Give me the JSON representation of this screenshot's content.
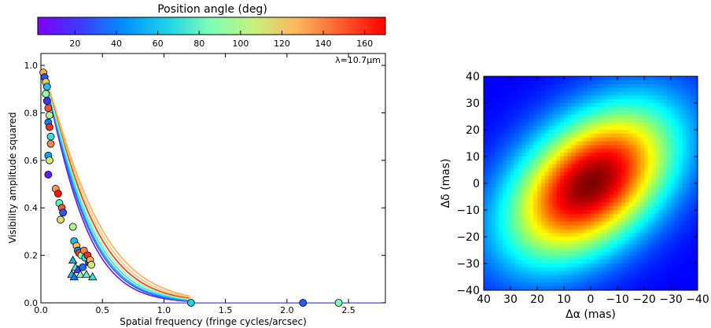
{
  "chart_data": [
    {
      "type": "scatter",
      "colorbar": {
        "label": "Position angle (deg)",
        "range": [
          2,
          170
        ],
        "ticks": [
          20,
          40,
          60,
          80,
          100,
          120,
          140,
          160
        ],
        "colormap": "jet"
      },
      "annotation": "λ=10.7μm",
      "xlabel": "Spatial frequency (fringe cycles/arcsec)",
      "ylabel": "Visibility amplitude squared",
      "xlim": [
        0,
        2.8
      ],
      "ylim": [
        0,
        1.05
      ],
      "xticks": [
        "0.0",
        "0.5",
        "1.0",
        "1.5",
        "2.0",
        "2.5"
      ],
      "yticks": [
        "0.0",
        "0.2",
        "0.4",
        "0.6",
        "0.8",
        "1.0"
      ],
      "grid": false,
      "points": [
        {
          "x": 0.02,
          "y": 0.97,
          "pa": 130,
          "marker": "circle"
        },
        {
          "x": 0.03,
          "y": 0.95,
          "pa": 30,
          "marker": "circle"
        },
        {
          "x": 0.04,
          "y": 0.93,
          "pa": 120,
          "marker": "circle"
        },
        {
          "x": 0.05,
          "y": 0.91,
          "pa": 60,
          "marker": "circle"
        },
        {
          "x": 0.04,
          "y": 0.88,
          "pa": 90,
          "marker": "circle"
        },
        {
          "x": 0.05,
          "y": 0.85,
          "pa": 20,
          "marker": "circle"
        },
        {
          "x": 0.06,
          "y": 0.82,
          "pa": 150,
          "marker": "circle"
        },
        {
          "x": 0.07,
          "y": 0.79,
          "pa": 100,
          "marker": "circle"
        },
        {
          "x": 0.06,
          "y": 0.76,
          "pa": 40,
          "marker": "circle"
        },
        {
          "x": 0.07,
          "y": 0.74,
          "pa": 160,
          "marker": "circle"
        },
        {
          "x": 0.08,
          "y": 0.7,
          "pa": 70,
          "marker": "circle"
        },
        {
          "x": 0.08,
          "y": 0.67,
          "pa": 140,
          "marker": "circle"
        },
        {
          "x": 0.06,
          "y": 0.62,
          "pa": 50,
          "marker": "circle"
        },
        {
          "x": 0.07,
          "y": 0.6,
          "pa": 110,
          "marker": "circle"
        },
        {
          "x": 0.06,
          "y": 0.54,
          "pa": 10,
          "marker": "circle"
        },
        {
          "x": 0.12,
          "y": 0.48,
          "pa": 135,
          "marker": "circle"
        },
        {
          "x": 0.14,
          "y": 0.46,
          "pa": 165,
          "marker": "circle"
        },
        {
          "x": 0.15,
          "y": 0.42,
          "pa": 80,
          "marker": "circle"
        },
        {
          "x": 0.17,
          "y": 0.4,
          "pa": 150,
          "marker": "circle"
        },
        {
          "x": 0.18,
          "y": 0.38,
          "pa": 30,
          "marker": "circle"
        },
        {
          "x": 0.16,
          "y": 0.35,
          "pa": 115,
          "marker": "circle"
        },
        {
          "x": 0.26,
          "y": 0.32,
          "pa": 100,
          "marker": "circle"
        },
        {
          "x": 0.27,
          "y": 0.26,
          "pa": 60,
          "marker": "circle"
        },
        {
          "x": 0.29,
          "y": 0.24,
          "pa": 125,
          "marker": "circle"
        },
        {
          "x": 0.3,
          "y": 0.22,
          "pa": 45,
          "marker": "circle"
        },
        {
          "x": 0.31,
          "y": 0.21,
          "pa": 155,
          "marker": "circle"
        },
        {
          "x": 0.33,
          "y": 0.2,
          "pa": 90,
          "marker": "circle"
        },
        {
          "x": 0.35,
          "y": 0.22,
          "pa": 140,
          "marker": "circle"
        },
        {
          "x": 0.36,
          "y": 0.19,
          "pa": 70,
          "marker": "circle"
        },
        {
          "x": 0.38,
          "y": 0.2,
          "pa": 160,
          "marker": "circle"
        },
        {
          "x": 0.39,
          "y": 0.17,
          "pa": 20,
          "marker": "circle"
        },
        {
          "x": 0.4,
          "y": 0.18,
          "pa": 130,
          "marker": "circle"
        },
        {
          "x": 0.41,
          "y": 0.16,
          "pa": 110,
          "marker": "circle"
        },
        {
          "x": 0.34,
          "y": 0.15,
          "pa": 35,
          "marker": "circle"
        },
        {
          "x": 0.26,
          "y": 0.18,
          "pa": 55,
          "marker": "triangle"
        },
        {
          "x": 0.28,
          "y": 0.15,
          "pa": 75,
          "marker": "triangle"
        },
        {
          "x": 0.3,
          "y": 0.14,
          "pa": 25,
          "marker": "triangle"
        },
        {
          "x": 0.32,
          "y": 0.12,
          "pa": 90,
          "marker": "triangle"
        },
        {
          "x": 0.25,
          "y": 0.12,
          "pa": 60,
          "marker": "triangle"
        },
        {
          "x": 0.27,
          "y": 0.11,
          "pa": 40,
          "marker": "triangle"
        },
        {
          "x": 0.37,
          "y": 0.12,
          "pa": 80,
          "marker": "triangle"
        },
        {
          "x": 0.42,
          "y": 0.11,
          "pa": 70,
          "marker": "triangle"
        },
        {
          "x": 1.22,
          "y": 0.0,
          "pa": 65,
          "marker": "circle"
        },
        {
          "x": 2.13,
          "y": 0.0,
          "pa": 30,
          "marker": "circle"
        },
        {
          "x": 2.42,
          "y": 0.0,
          "pa": 85,
          "marker": "circle"
        }
      ],
      "model_curves": [
        {
          "pa": 130,
          "width": 0.44
        },
        {
          "pa": 120,
          "width": 0.42
        },
        {
          "pa": 160,
          "width": 0.4
        },
        {
          "pa": 10,
          "width": 0.33
        },
        {
          "pa": 30,
          "width": 0.345
        },
        {
          "pa": 50,
          "width": 0.355
        },
        {
          "pa": 70,
          "width": 0.37
        },
        {
          "pa": 95,
          "width": 0.385
        }
      ]
    },
    {
      "type": "heatmap",
      "colormap": "jet",
      "xlabel": "Δα (mas)",
      "ylabel": "Δδ (mas)",
      "xlim": [
        40,
        -40
      ],
      "ylim": [
        -40,
        40
      ],
      "xticks": [
        "40",
        "30",
        "20",
        "10",
        "0",
        "−10",
        "−20",
        "−30",
        "−40"
      ],
      "yticks": [
        "40",
        "30",
        "20",
        "10",
        "0",
        "−10",
        "−20",
        "−30",
        "−40"
      ],
      "model": {
        "kind": "elliptical-gaussian",
        "major_fwhm": 58,
        "minor_fwhm": 36,
        "pa": 130,
        "grid": 56
      }
    }
  ]
}
